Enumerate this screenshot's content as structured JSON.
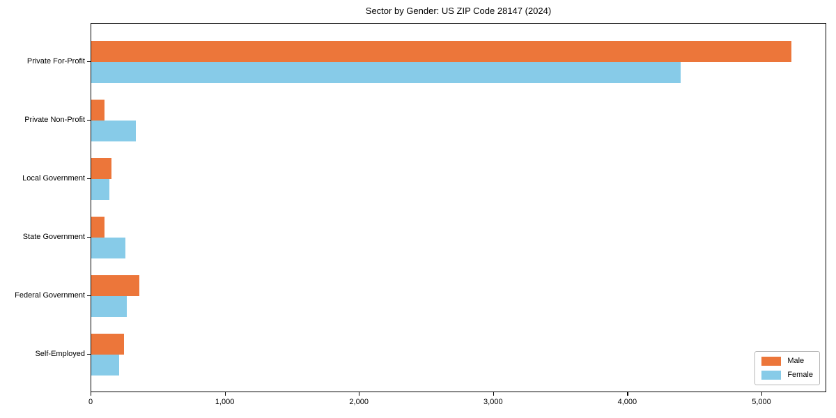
{
  "title": "Sector by Gender: US ZIP Code 28147 (2024)",
  "chart_data": {
    "type": "bar",
    "orientation": "horizontal",
    "title": "Sector by Gender: US ZIP Code 28147 (2024)",
    "categories": [
      "Private For-Profit",
      "Private Non-Profit",
      "Local Government",
      "State Government",
      "Federal Government",
      "Self-Employed"
    ],
    "series": [
      {
        "name": "Male",
        "color": "#EC763A",
        "values": [
          5220,
          100,
          150,
          100,
          360,
          245
        ]
      },
      {
        "name": "Female",
        "color": "#87CBE8",
        "values": [
          4390,
          330,
          135,
          255,
          265,
          210
        ]
      }
    ],
    "xlabel": "",
    "ylabel": "",
    "xlim": [
      0,
      5483
    ],
    "xticks": [
      0,
      1000,
      2000,
      3000,
      4000,
      5000
    ],
    "xtick_labels": [
      "0",
      "1,000",
      "2,000",
      "3,000",
      "4,000",
      "5,000"
    ],
    "legend_position": "lower right",
    "grid": false,
    "background": "#ffffff",
    "axis_color": "#000000"
  }
}
